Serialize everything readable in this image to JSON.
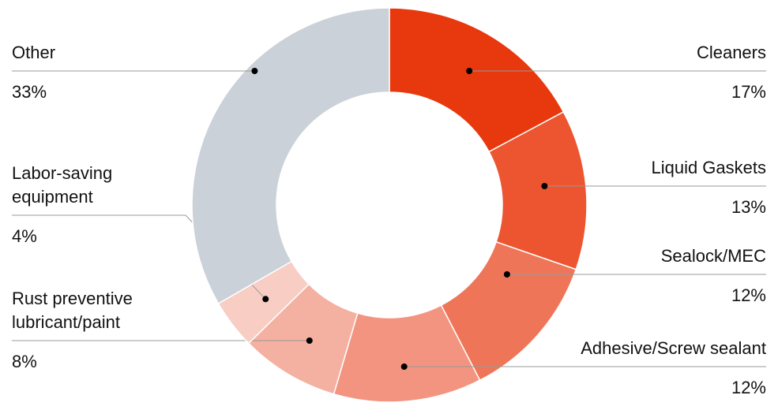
{
  "chart_data": {
    "type": "donut",
    "categories": [
      [
        "Cleaners"
      ],
      [
        "Liquid Gaskets"
      ],
      [
        "Sealock/MEC"
      ],
      [
        "Adhesive/Screw sealant"
      ],
      [
        "Rust preventive",
        "lubricant/paint"
      ],
      [
        "Labor-saving",
        "equipment"
      ],
      [
        "Other"
      ]
    ],
    "values": [
      17,
      13,
      12,
      12,
      8,
      4,
      33
    ],
    "value_labels": [
      "17%",
      "13%",
      "12%",
      "12%",
      "8%",
      "4%",
      "33%"
    ],
    "colors": [
      "#e8380d",
      "#ec5530",
      "#ef7558",
      "#f29480",
      "#f4b0a0",
      "#f7cdc4",
      "#cbd1d8"
    ]
  }
}
